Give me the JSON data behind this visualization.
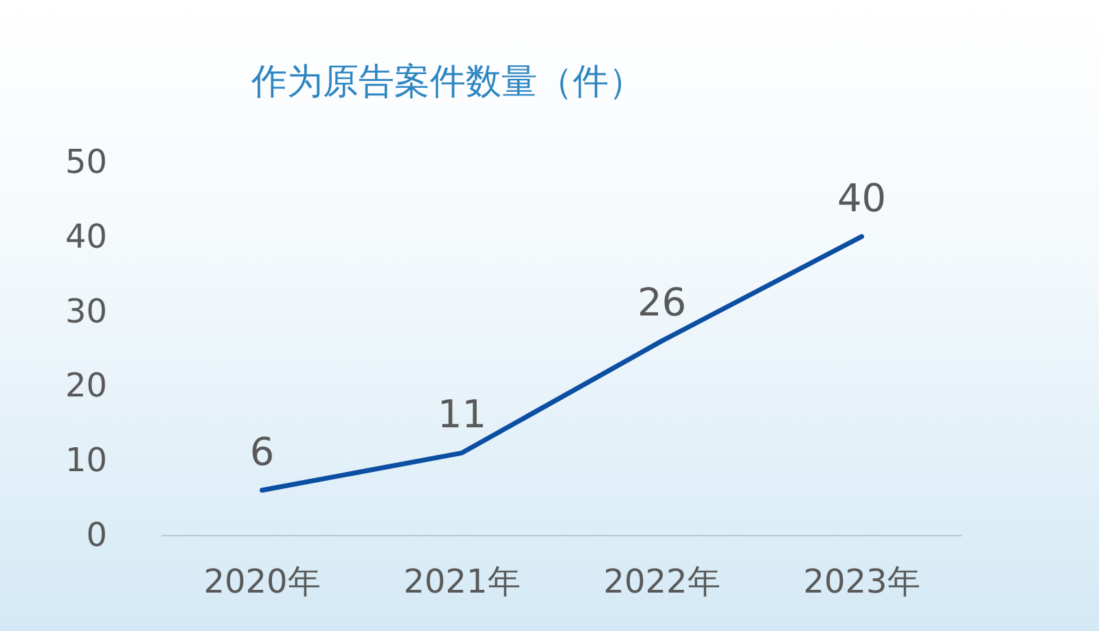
{
  "chart_data": {
    "type": "line",
    "title": "作为原告案件数量（件）",
    "categories": [
      "2020年",
      "2021年",
      "2022年",
      "2023年"
    ],
    "series": [
      {
        "color": "#0b4ea2",
        "values": [
          6,
          11,
          26,
          40
        ]
      }
    ],
    "ylim": [
      0,
      50
    ],
    "yticks": [
      0,
      10,
      20,
      30,
      40,
      50
    ],
    "grid": false,
    "marker": "none",
    "line_style": "solid",
    "data_labels": true
  }
}
